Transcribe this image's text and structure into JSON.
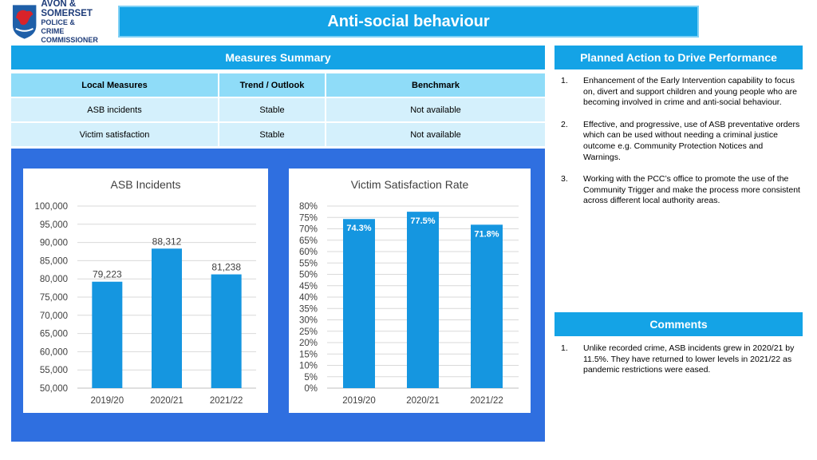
{
  "logo": {
    "line1": "AVON &",
    "line2": "SOMERSET",
    "line3": "POLICE & CRIME",
    "line4": "COMMISSIONER"
  },
  "header": {
    "title": "Anti-social behaviour"
  },
  "measures": {
    "heading": "Measures Summary",
    "columns": [
      "Local Measures",
      "Trend / Outlook",
      "Benchmark"
    ],
    "rows": [
      [
        "ASB incidents",
        "Stable",
        "Not available"
      ],
      [
        "Victim satisfaction",
        "Stable",
        "Not available"
      ]
    ]
  },
  "plan": {
    "heading": "Planned Action to Drive Performance",
    "items": [
      {
        "num": "1.",
        "text": "Enhancement of the Early Intervention capability to focus on, divert and support children and young people who are becoming involved in crime and anti-social behaviour."
      },
      {
        "num": "2.",
        "text": "Effective, and progressive, use of ASB preventative orders which can be used without needing a criminal justice outcome e.g. Community Protection Notices and Warnings."
      },
      {
        "num": "3.",
        "text": "Working with the PCC’s office to promote the use of the Community Trigger and make the process more consistent across different local authority areas."
      }
    ]
  },
  "comments": {
    "heading": "Comments",
    "items": [
      {
        "num": "1.",
        "text": "Unlike recorded crime, ASB incidents grew in 2020/21 by 11.5%. They have returned to lower levels in 2021/22 as pandemic restrictions were eased."
      }
    ]
  },
  "colors": {
    "accent": "#14a3e6",
    "panel": "#2f6fe0",
    "bar": "#1596e0"
  },
  "chart_data": [
    {
      "type": "bar",
      "title": "ASB Incidents",
      "categories": [
        "2019/20",
        "2020/21",
        "2021/22"
      ],
      "values": [
        79223,
        88312,
        81238
      ],
      "data_labels": [
        "79,223",
        "88,312",
        "81,238"
      ],
      "ylim": [
        50000,
        100000
      ],
      "yticks": [
        "50,000",
        "55,000",
        "60,000",
        "65,000",
        "70,000",
        "75,000",
        "80,000",
        "85,000",
        "90,000",
        "95,000",
        "100,000"
      ],
      "grid": true
    },
    {
      "type": "bar",
      "title": "Victim Satisfaction Rate",
      "categories": [
        "2019/20",
        "2020/21",
        "2021/22"
      ],
      "values": [
        74.3,
        77.5,
        71.8
      ],
      "data_labels": [
        "74.3%",
        "77.5%",
        "71.8%"
      ],
      "ylim": [
        0,
        80
      ],
      "yticks": [
        "0%",
        "5%",
        "10%",
        "15%",
        "20%",
        "25%",
        "30%",
        "35%",
        "40%",
        "45%",
        "50%",
        "55%",
        "60%",
        "65%",
        "70%",
        "75%",
        "80%"
      ],
      "grid": true
    }
  ]
}
